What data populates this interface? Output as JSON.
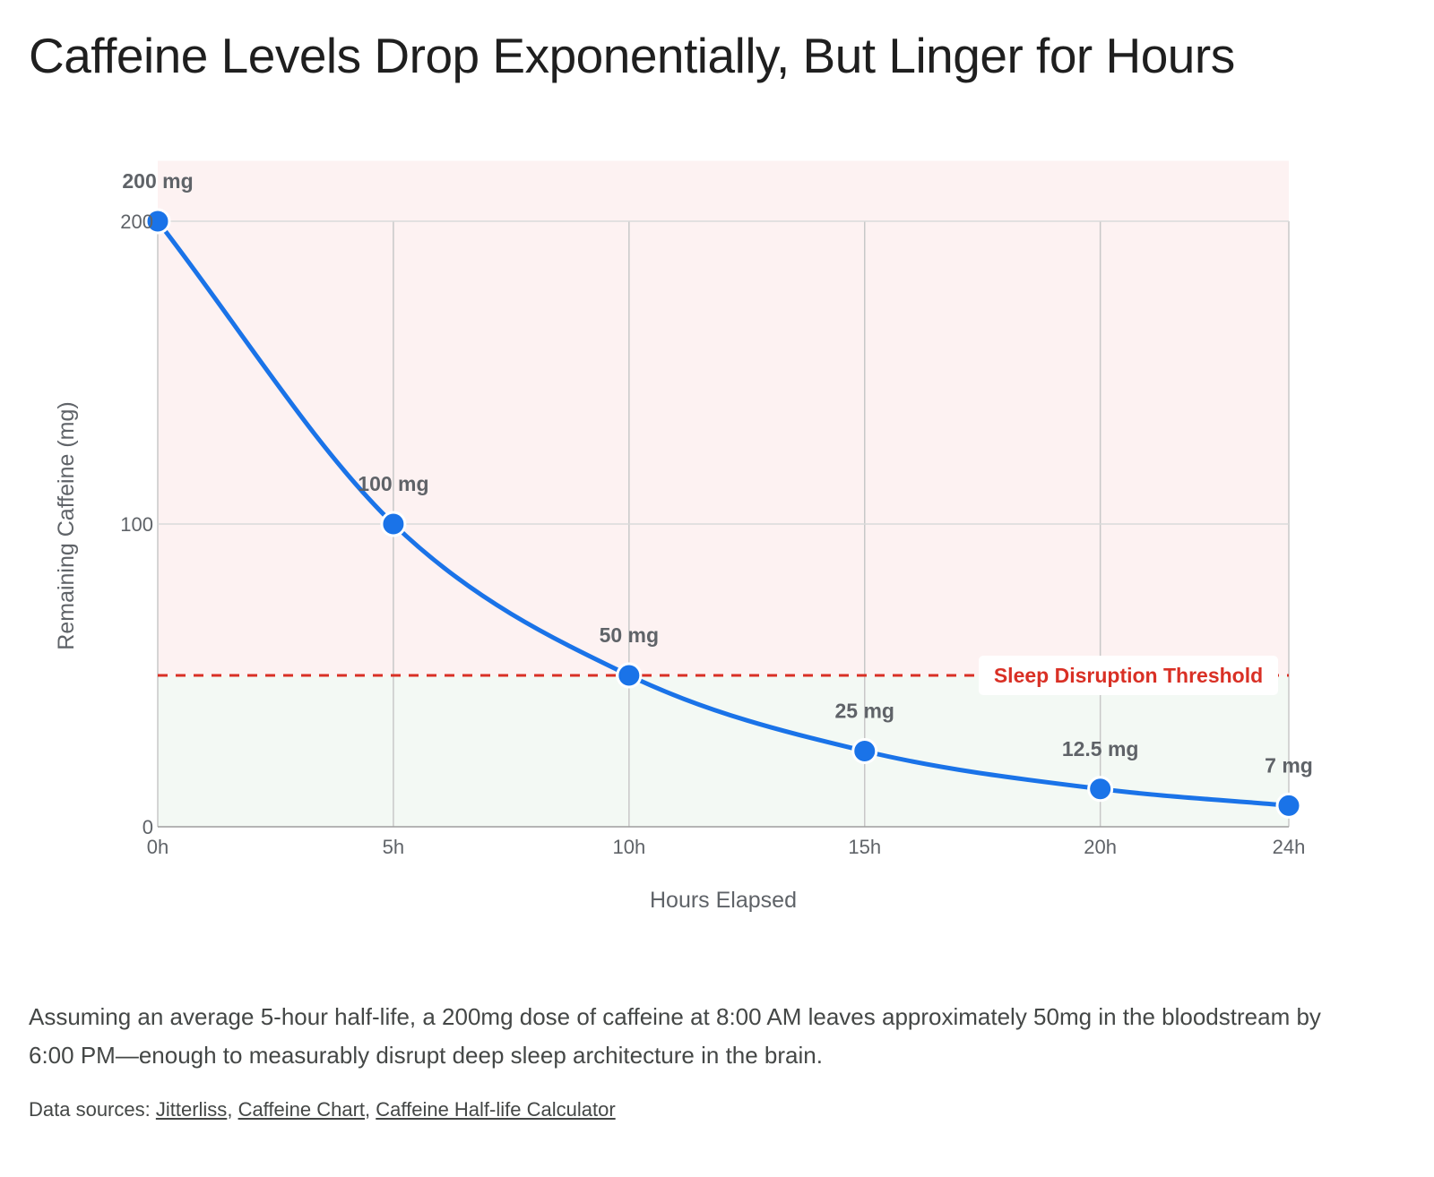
{
  "title": "Caffeine Levels Drop Exponentially, But Linger for Hours",
  "summary": "Assuming an average 5-hour half-life, a 200mg dose of caffeine at 8:00 AM leaves approximately 50mg in the bloodstream by 6:00 PM—enough to measurably disrupt deep sleep architecture in the brain.",
  "sources": {
    "prefix": "Data sources:",
    "separator": ",",
    "links": [
      "Jitterliss",
      "Caffeine Chart",
      "Caffeine Half-life Calculator"
    ]
  },
  "chart_data": {
    "type": "line",
    "title": "Caffeine Levels Drop Exponentially, But Linger for Hours",
    "xlabel": "Hours Elapsed",
    "ylabel": "Remaining Caffeine (mg)",
    "x": [
      0,
      5,
      10,
      15,
      20,
      24
    ],
    "x_tick_labels": [
      "0h",
      "5h",
      "10h",
      "15h",
      "20h",
      "24h"
    ],
    "y_ticks": [
      0,
      100,
      200
    ],
    "xlim": [
      0,
      24
    ],
    "ylim": [
      0,
      220
    ],
    "grid": true,
    "series": [
      {
        "values": [
          200,
          100,
          50,
          25,
          12.5,
          7
        ],
        "data_labels": [
          "200 mg",
          "100 mg",
          "50 mg",
          "25 mg",
          "12.5 mg",
          "7 mg"
        ],
        "color": "#1a73e8"
      }
    ],
    "threshold": {
      "value": 50,
      "label": "Sleep Disruption Threshold",
      "color": "#d93025",
      "above_color": "#fdf2f2",
      "below_color": "#f3f9f4"
    }
  }
}
